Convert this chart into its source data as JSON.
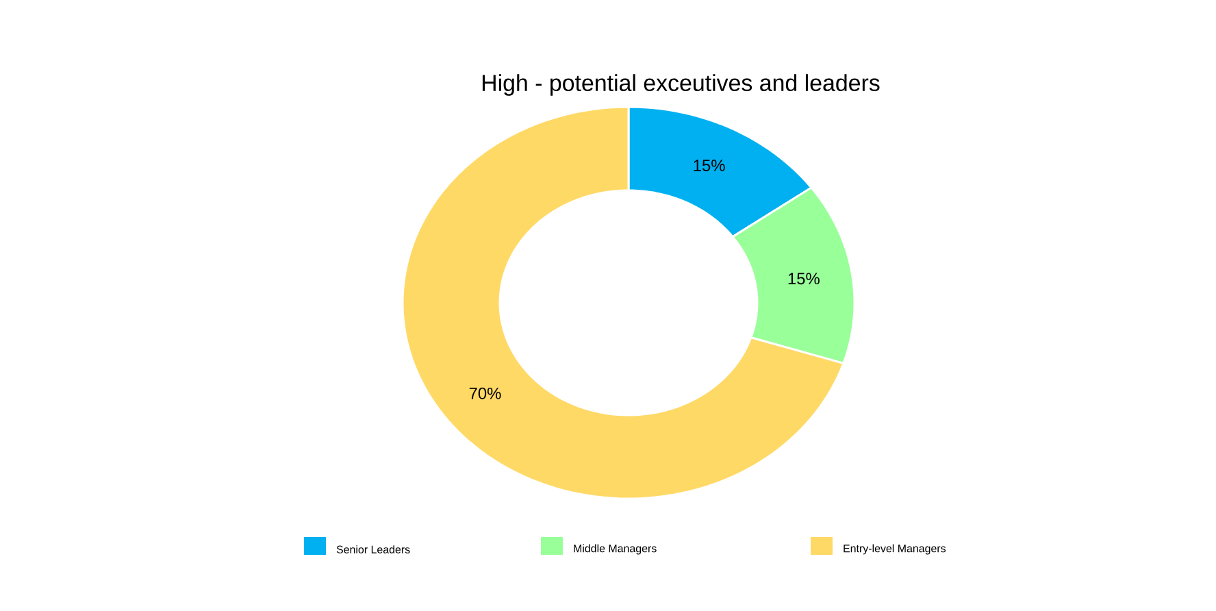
{
  "chart_data": {
    "type": "donut",
    "title": "High - potential exceutives and leaders",
    "categories": [
      "Senior Leaders",
      "Middle Managers",
      "Entry-level Managers"
    ],
    "values": [
      15,
      15,
      70
    ],
    "colors": [
      "#00b0f0",
      "#99ff99",
      "#ffd966"
    ],
    "value_labels": [
      "15%",
      "15%",
      "70%"
    ],
    "legend": "bottom"
  }
}
